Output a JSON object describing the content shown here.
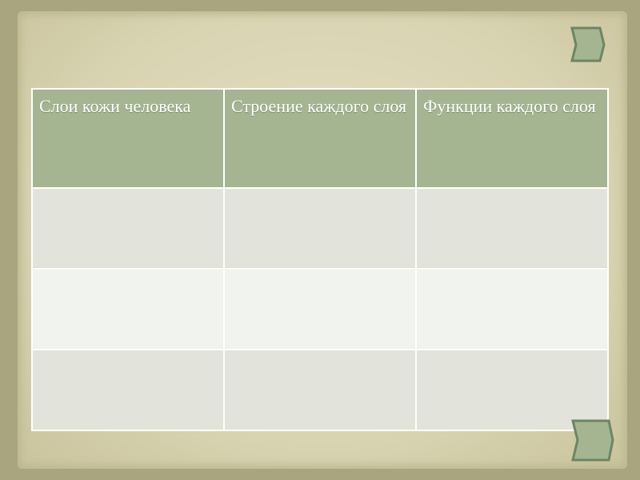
{
  "table": {
    "headers": [
      "Слои кожи человека",
      "Строение каждого слоя",
      "Функции каждого слоя"
    ],
    "rows": [
      [
        "",
        "",
        ""
      ],
      [
        "",
        "",
        ""
      ],
      [
        "",
        "",
        ""
      ]
    ]
  },
  "colors": {
    "header": "#a5b592",
    "row_odd": "#e2e4dc",
    "row_even": "#f1f3ee",
    "chevron": "#a5b592"
  },
  "icons": {
    "top": "chevron-right-icon",
    "bottom": "chevron-right-icon"
  }
}
